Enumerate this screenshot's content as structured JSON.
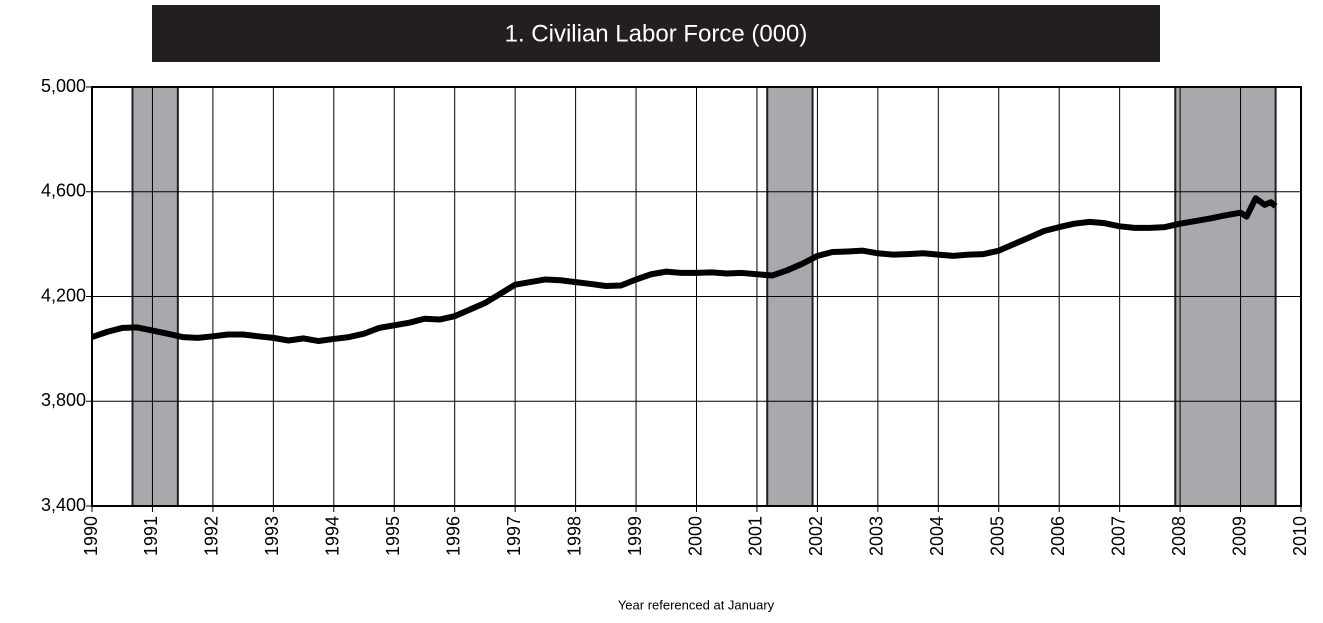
{
  "chart_data": {
    "type": "line",
    "title": "1. Civilian Labor Force (000)",
    "x_label": "Year referenced at January",
    "xlim": [
      1990,
      2010
    ],
    "ylim": [
      3400,
      5000
    ],
    "xticks": [
      1990,
      1991,
      1992,
      1993,
      1994,
      1995,
      1996,
      1997,
      1998,
      1999,
      2000,
      2001,
      2002,
      2003,
      2004,
      2005,
      2006,
      2007,
      2008,
      2009,
      2010
    ],
    "yticks": [
      {
        "value": 3400,
        "label": "3,400"
      },
      {
        "value": 3800,
        "label": "3,800"
      },
      {
        "value": 4200,
        "label": "4,200"
      },
      {
        "value": 4600,
        "label": "4,600"
      },
      {
        "value": 5000,
        "label": "5,000"
      }
    ],
    "grid": true,
    "shaded_regions": [
      [
        1990.67,
        1991.42
      ],
      [
        2001.17,
        2001.92
      ],
      [
        2007.92,
        2009.58
      ]
    ],
    "shade_color": "#a7a9ac",
    "x": [
      1990,
      1990.25,
      1990.5,
      1990.75,
      1991,
      1991.25,
      1991.5,
      1991.75,
      1992,
      1992.25,
      1992.5,
      1992.75,
      1993,
      1993.25,
      1993.5,
      1993.75,
      1994,
      1994.25,
      1994.5,
      1994.75,
      1995,
      1995.25,
      1995.5,
      1995.75,
      1996,
      1996.25,
      1996.5,
      1996.75,
      1997,
      1997.25,
      1997.5,
      1997.75,
      1998,
      1998.25,
      1998.5,
      1998.75,
      1999,
      1999.25,
      1999.5,
      1999.75,
      2000,
      2000.25,
      2000.5,
      2000.75,
      2001,
      2001.25,
      2001.5,
      2001.75,
      2002,
      2002.25,
      2002.5,
      2002.75,
      2003,
      2003.25,
      2003.5,
      2003.75,
      2004,
      2004.25,
      2004.5,
      2004.75,
      2005,
      2005.25,
      2005.5,
      2005.75,
      2006,
      2006.25,
      2006.5,
      2006.75,
      2007,
      2007.25,
      2007.5,
      2007.75,
      2008,
      2008.25,
      2008.5,
      2008.75,
      2009,
      2009.1,
      2009.25,
      2009.4,
      2009.5,
      2009.58
    ],
    "series": [
      {
        "name": "Civilian Labor Force",
        "color": "#000000",
        "values": [
          4045,
          4065,
          4080,
          4082,
          4070,
          4058,
          4045,
          4042,
          4048,
          4055,
          4055,
          4048,
          4042,
          4032,
          4040,
          4030,
          4038,
          4045,
          4058,
          4080,
          4090,
          4100,
          4115,
          4112,
          4125,
          4150,
          4175,
          4210,
          4245,
          4255,
          4265,
          4262,
          4255,
          4248,
          4240,
          4242,
          4265,
          4285,
          4295,
          4290,
          4290,
          4292,
          4288,
          4290,
          4285,
          4280,
          4300,
          4325,
          4355,
          4370,
          4372,
          4375,
          4365,
          4360,
          4362,
          4365,
          4360,
          4355,
          4360,
          4362,
          4375,
          4400,
          4425,
          4450,
          4465,
          4478,
          4485,
          4480,
          4468,
          4462,
          4462,
          4465,
          4478,
          4488,
          4498,
          4510,
          4520,
          4505,
          4575,
          4550,
          4560,
          4545
        ]
      }
    ]
  }
}
